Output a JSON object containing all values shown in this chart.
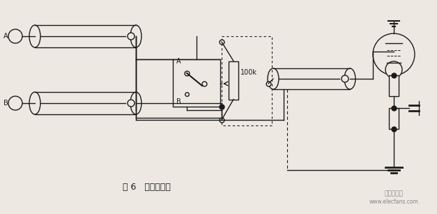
{
  "title": "图 6   双芯屏蔽线",
  "bg_color": "#ede9e2",
  "line_color": "#1a1a1a",
  "watermark_line1": "电子发烧友",
  "watermark_line2": "www.elecfans.com",
  "label_A": "A",
  "label_B": "B",
  "label_Aswitch": "A",
  "label_Bswitch": "B",
  "label_100k": "100k"
}
